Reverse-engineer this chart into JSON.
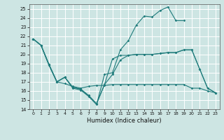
{
  "xlabel": "Humidex (Indice chaleur)",
  "xlim": [
    -0.5,
    23.5
  ],
  "ylim": [
    14,
    25.5
  ],
  "yticks": [
    14,
    15,
    16,
    17,
    18,
    19,
    20,
    21,
    22,
    23,
    24,
    25
  ],
  "xticks": [
    0,
    1,
    2,
    3,
    4,
    5,
    6,
    7,
    8,
    9,
    10,
    11,
    12,
    13,
    14,
    15,
    16,
    17,
    18,
    19,
    20,
    21,
    22,
    23
  ],
  "bg_color": "#cde5e3",
  "grid_color": "#ffffff",
  "line_color": "#1e7b7b",
  "line1_x": [
    0,
    1,
    2,
    3,
    4,
    5,
    6,
    7,
    8,
    9,
    10,
    11,
    12,
    13,
    14,
    15,
    16,
    17,
    18,
    19
  ],
  "line1_y": [
    21.7,
    21.0,
    18.8,
    17.0,
    17.5,
    16.3,
    16.1,
    15.4,
    14.5,
    17.8,
    18.0,
    20.5,
    21.5,
    23.2,
    24.2,
    24.1,
    24.8,
    25.2,
    23.7,
    23.7
  ],
  "line2_x": [
    0,
    1,
    2,
    3,
    4,
    5,
    6,
    7,
    8,
    9,
    10,
    11,
    12,
    13,
    14,
    15,
    16,
    17,
    18,
    19,
    20,
    21,
    22,
    23
  ],
  "line2_y": [
    21.7,
    21.0,
    18.9,
    17.0,
    17.5,
    16.4,
    16.2,
    15.5,
    14.6,
    16.7,
    19.5,
    19.9,
    19.9,
    20.0,
    20.0,
    20.0,
    20.1,
    20.2,
    20.2,
    20.5,
    20.5,
    18.4,
    16.3,
    15.8
  ],
  "line3_x": [
    0,
    1,
    2,
    3,
    4,
    5,
    6,
    7,
    8,
    9,
    10,
    11,
    12,
    13,
    14,
    15,
    16,
    17,
    18,
    19,
    20,
    21,
    22,
    23
  ],
  "line3_y": [
    21.7,
    21.0,
    18.9,
    17.0,
    17.5,
    16.4,
    16.2,
    15.5,
    14.6,
    16.7,
    17.8,
    19.4,
    19.9,
    20.0,
    20.0,
    20.0,
    20.1,
    20.2,
    20.2,
    20.5,
    20.5,
    18.4,
    16.3,
    15.8
  ],
  "line4_x": [
    0,
    1,
    2,
    3,
    4,
    5,
    6,
    7,
    8,
    9,
    10,
    11,
    12,
    13,
    14,
    15,
    16,
    17,
    18,
    19,
    20,
    21,
    22,
    23
  ],
  "line4_y": [
    21.7,
    21.0,
    18.9,
    17.0,
    16.8,
    16.5,
    16.3,
    16.5,
    16.6,
    16.6,
    16.7,
    16.7,
    16.7,
    16.7,
    16.7,
    16.7,
    16.7,
    16.7,
    16.7,
    16.7,
    16.3,
    16.3,
    16.0,
    15.8
  ]
}
